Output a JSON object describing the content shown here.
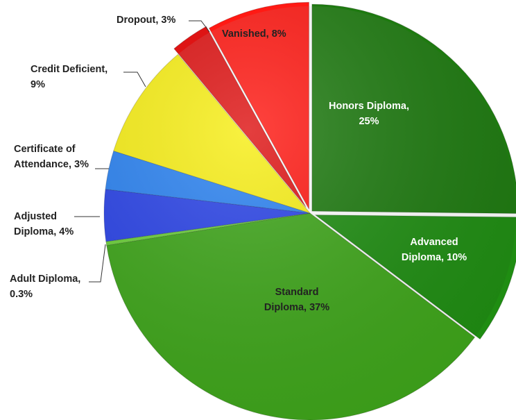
{
  "chart_data": {
    "type": "pie",
    "title": "",
    "start": "12 o'clock",
    "direction": "clockwise",
    "slices": [
      {
        "name": "Honors Diploma",
        "value": 25,
        "color": "#1e7a10",
        "label_lines": [
          "Honors Diploma,",
          "25%"
        ]
      },
      {
        "name": "Advanced Diploma",
        "value": 10,
        "color": "#1f8d12",
        "label_lines": [
          "Advanced",
          "Diploma,        10%"
        ]
      },
      {
        "name": "Standard Diploma",
        "value": 37,
        "color": "#3ea51a",
        "label_lines": [
          "Standard",
          "Diploma, 37%"
        ]
      },
      {
        "name": "Adult Diploma",
        "value": 0.3,
        "color": "#6ccf3a",
        "label_lines": [
          "Adult Diploma,",
          "0.3%"
        ]
      },
      {
        "name": "Adjusted Diploma",
        "value": 4,
        "color": "#2a43e6",
        "label_lines": [
          "Adjusted",
          "Diploma, 4%"
        ]
      },
      {
        "name": "Certificate of Attendance",
        "value": 3,
        "color": "#2b82f0",
        "label_lines": [
          "Certificate of",
          "Attendance, 3%"
        ]
      },
      {
        "name": "Credit Deficient",
        "value": 9,
        "color": "#f7ee16",
        "label_lines": [
          "Credit Deficient,",
          "9%"
        ]
      },
      {
        "name": "Dropout",
        "value": 3,
        "color": "#de1414",
        "label_lines": [
          "Dropout, 3%"
        ]
      },
      {
        "name": "Vanished",
        "value": 8,
        "color": "#ff1a14",
        "label_lines": [
          "Vanished, 8%"
        ]
      }
    ]
  }
}
